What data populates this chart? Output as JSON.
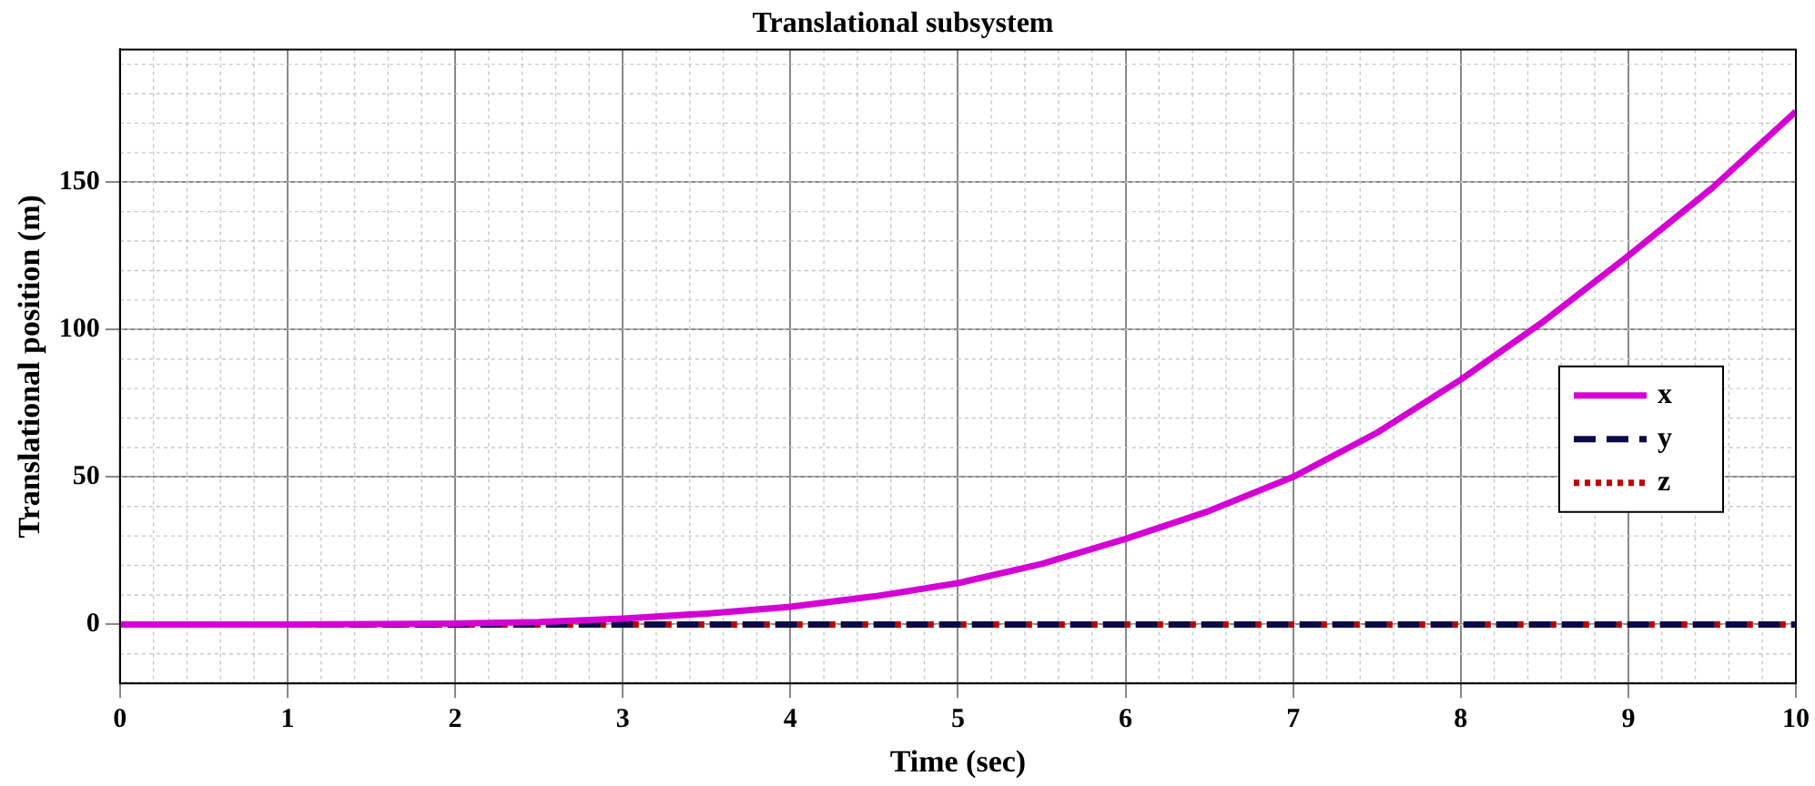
{
  "chart_data": {
    "type": "line",
    "title": "Translational subsystem",
    "xlabel": "Time (sec)",
    "ylabel": "Translational position (m)",
    "xlim": [
      0,
      10
    ],
    "xticks": [
      0,
      1,
      2,
      3,
      4,
      5,
      6,
      7,
      8,
      9,
      10
    ],
    "ylim": [
      -20,
      195
    ],
    "yticks": [
      0,
      50,
      100,
      150
    ],
    "grid": true,
    "legend": "right",
    "marker": "none",
    "series": [
      {
        "name": "x",
        "color": "#d400d4",
        "line_style": "solid",
        "x": [
          0,
          0.5,
          1,
          1.5,
          2,
          2.5,
          3,
          3.5,
          4,
          4.5,
          5,
          5.5,
          6,
          6.5,
          7,
          7.5,
          8,
          8.5,
          9,
          9.5,
          10
        ],
        "values": [
          0,
          0,
          0,
          0.1,
          0.3,
          0.8,
          2,
          3.7,
          6,
          9.5,
          14,
          20.5,
          29,
          38.5,
          50,
          65,
          83,
          103,
          125,
          148,
          174
        ]
      },
      {
        "name": "y",
        "color": "#0a0a4a",
        "line_style": "dashed",
        "x": [
          0,
          10
        ],
        "values": [
          0,
          0
        ]
      },
      {
        "name": "z",
        "color": "#c00000",
        "line_style": "dotted",
        "x": [
          0,
          10
        ],
        "values": [
          0,
          0
        ]
      }
    ]
  }
}
